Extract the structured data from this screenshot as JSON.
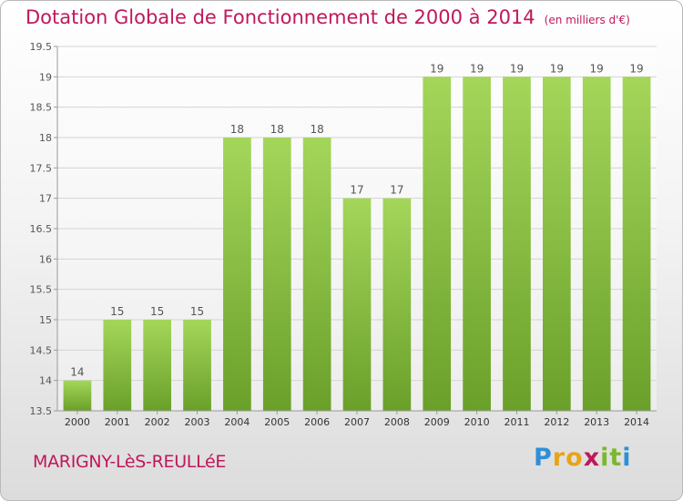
{
  "header": {
    "title": "Dotation Globale de Fonctionnement de 2000 à 2014",
    "subtitle": "(en milliers d'€)"
  },
  "footer": {
    "commune": "MARIGNY-LèS-REULLéE",
    "brand": "Proxiti"
  },
  "colors": {
    "bar_light": "#a4d65a",
    "bar_dark": "#6aa02a",
    "title": "#c0185b"
  },
  "chart_data": {
    "type": "bar",
    "title": "Dotation Globale de Fonctionnement de 2000 à 2014",
    "subtitle": "(en milliers d'€)",
    "categories": [
      "2000",
      "2001",
      "2002",
      "2003",
      "2004",
      "2005",
      "2006",
      "2007",
      "2008",
      "2009",
      "2010",
      "2011",
      "2012",
      "2013",
      "2014"
    ],
    "values": [
      14,
      15,
      15,
      15,
      18,
      18,
      18,
      17,
      17,
      19,
      19,
      19,
      19,
      19,
      19
    ],
    "ylim": [
      13.5,
      19.5
    ],
    "yticks": [
      "13.5",
      "14",
      "14.5",
      "15",
      "15.5",
      "16",
      "16.5",
      "17",
      "17.5",
      "18",
      "18.5",
      "19",
      "19.5"
    ],
    "grid": true,
    "data_labels": true
  }
}
